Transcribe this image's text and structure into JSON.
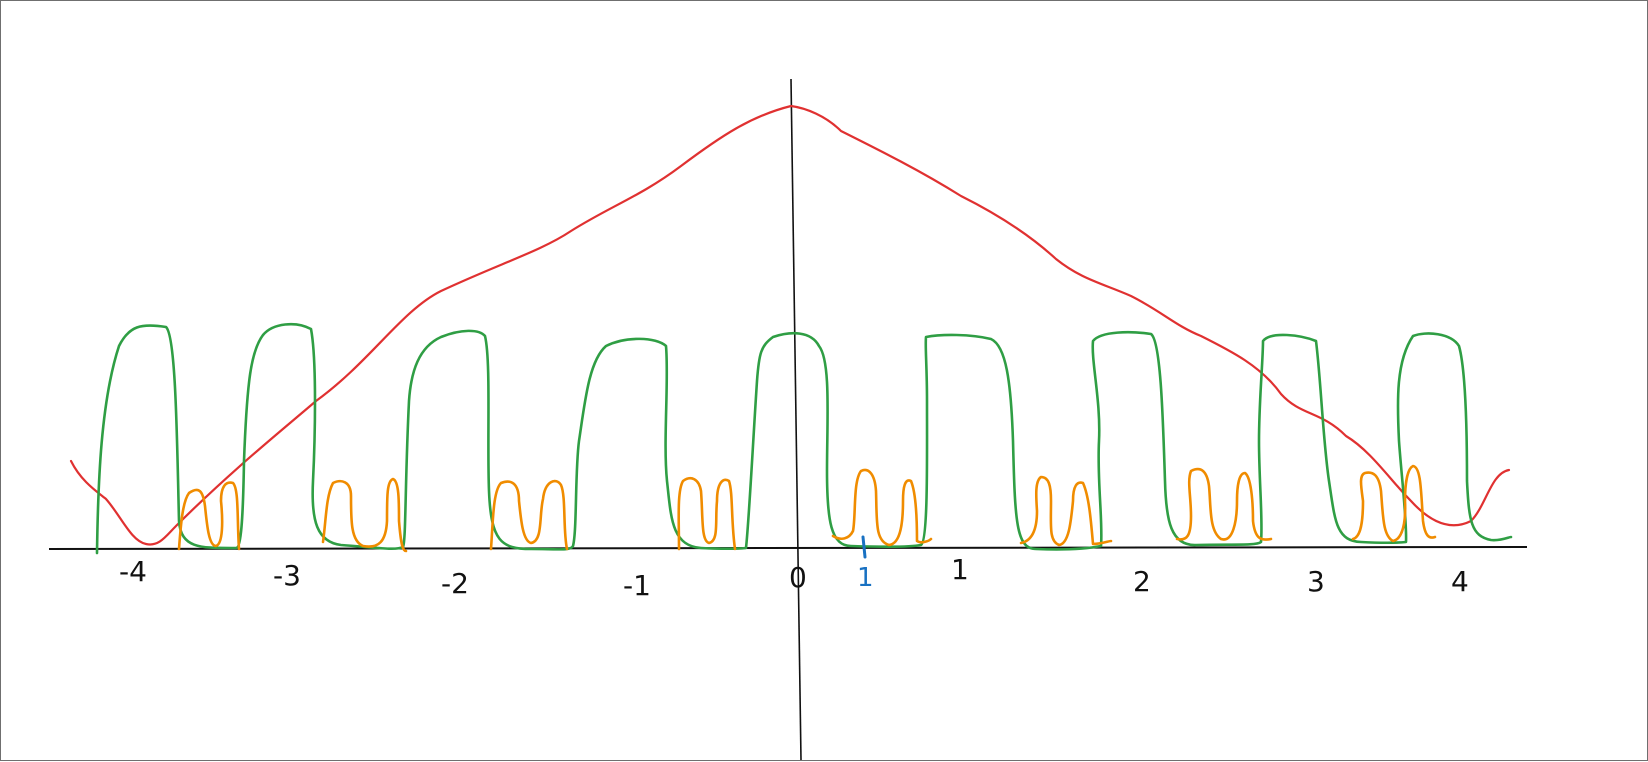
{
  "colors": {
    "axis": "#111111",
    "curve_red": "#e03131",
    "wave_green": "#2f9e44",
    "wave_orange": "#f08c00",
    "marker_blue": "#1971c2"
  },
  "x_tick_labels": [
    "-4",
    "-3",
    "-2",
    "-1",
    "0",
    "1",
    "2",
    "3",
    "4"
  ],
  "marker_label": "1"
}
